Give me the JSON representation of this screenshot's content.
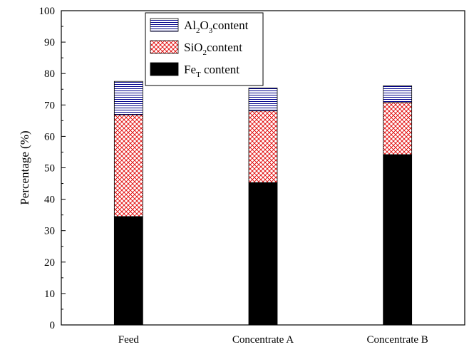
{
  "chart_data": {
    "type": "bar",
    "stacked": true,
    "categories": [
      "Feed",
      "Concentrate A",
      "Concentrate B"
    ],
    "series": [
      {
        "name": "Fe_T content",
        "values": [
          34.5,
          45.3,
          54.2
        ],
        "pattern": "solid",
        "color": "#000000"
      },
      {
        "name": "SiO_2 content",
        "values": [
          32.4,
          22.8,
          16.6
        ],
        "pattern": "crosshatch",
        "color": "#ff0000"
      },
      {
        "name": "Al_2O_3 content",
        "values": [
          10.6,
          7.3,
          5.3
        ],
        "pattern": "horizontal-lines",
        "color": "#00008b"
      }
    ],
    "ylabel": "Percentage (%)",
    "xlabel": "",
    "ylim": [
      0,
      100
    ],
    "yticks": [
      0,
      10,
      20,
      30,
      40,
      50,
      60,
      70,
      80,
      90,
      100
    ],
    "legend_position": "top-left",
    "legend": [
      {
        "base": "Al",
        "sub1": "2",
        "mid": "O",
        "sub2": "3",
        "tail": "content"
      },
      {
        "base": "SiO",
        "sub1": "2",
        "mid": "",
        "sub2": "",
        "tail": "content"
      },
      {
        "base": "Fe",
        "sub1": "T",
        "mid": "",
        "sub2": "",
        "tail": " content"
      }
    ]
  }
}
